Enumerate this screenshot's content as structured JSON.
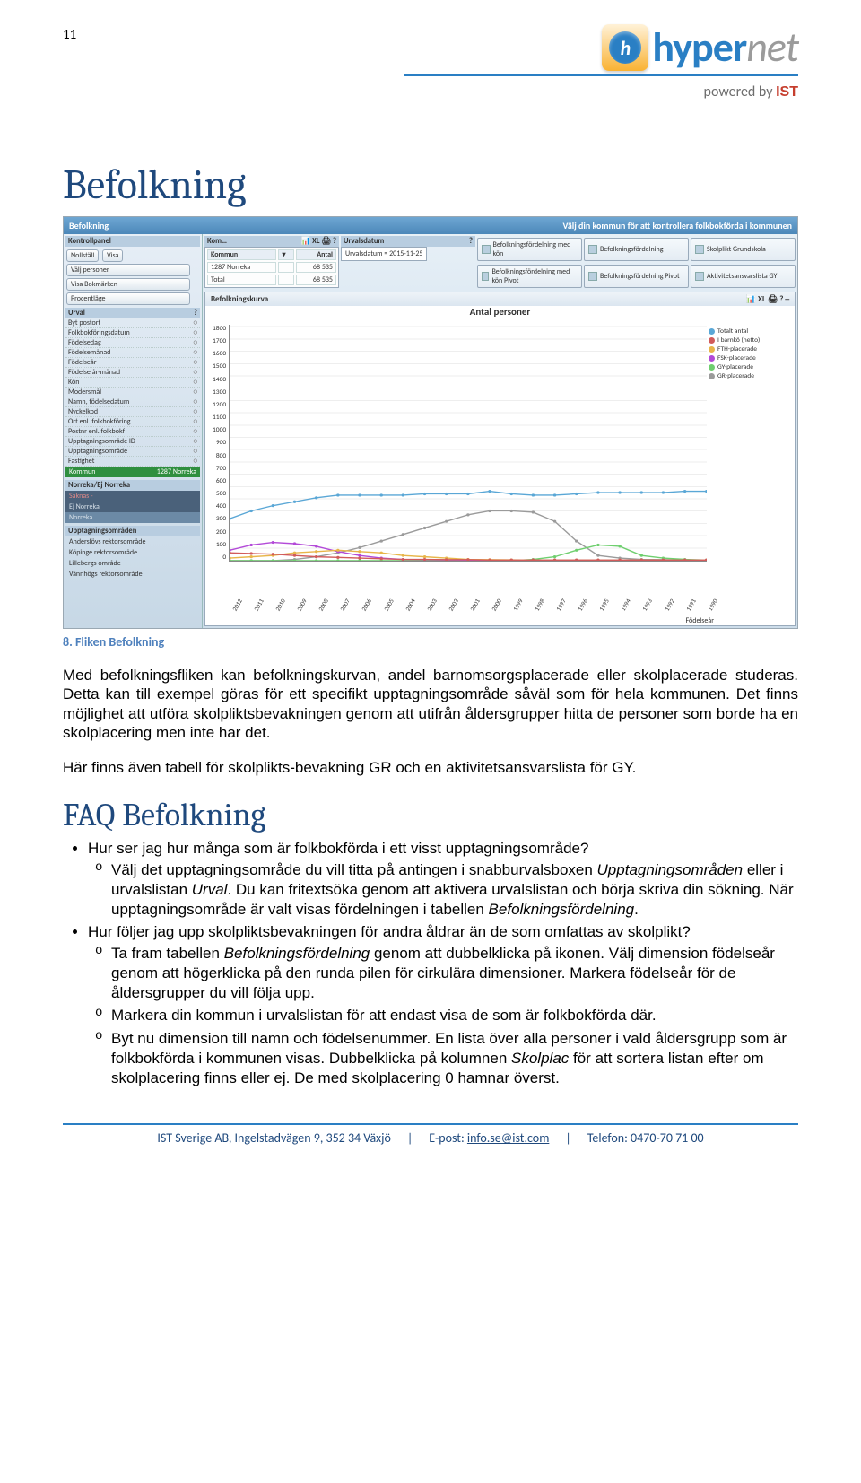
{
  "page_number": "11",
  "logo": {
    "brand1": "hyper",
    "brand2": "net",
    "icon_letter": "h",
    "powered": "powered by ",
    "ist": "IST"
  },
  "title": "Befolkning",
  "caption": "8. Fliken Befolkning",
  "subtitle": "FAQ Befolkning",
  "paragraphs": {
    "p1": "Med befolkningsfliken kan befolkningskurvan, andel barnomsorgsplacerade eller skolplacerade studeras. Detta kan till exempel göras för ett specifikt upptagningsområde såväl som för hela kommunen. Det finns möjlighet att utföra skolpliktsbevakningen genom att utifrån åldersgrupper hitta de personer som borde ha en skolplacering men inte har det.",
    "p2": "Här finns även tabell för skolplikts-bevakning GR och en aktivitetsansvarslista för GY."
  },
  "faq": [
    {
      "q": "Hur ser jag hur många som är folkbokförda i ett visst upptagningsområde?",
      "a": [
        "Välj det upptagningsområde du vill titta på antingen i snabburvalsboxen Upptagningsområden eller i urvalslistan Urval. Du kan fritextsöka genom att aktivera urvalslistan och börja skriva din sökning. När upptagningsområde är valt visas fördelningen i tabellen Befolkningsfördelning."
      ]
    },
    {
      "q": "Hur följer jag upp skolpliktsbevakningen för andra åldrar än de som omfattas av skolplikt?",
      "a": [
        "Ta fram tabellen Befolkningsfördelning genom att dubbelklicka på ikonen. Välj dimension födelseår genom att högerklicka på den runda pilen för cirkulära dimensioner. Markera födelseår för de åldersgrupper du vill följa upp.",
        "Markera din kommun i urvalslistan för att endast visa de som är folkbokförda där.",
        "Byt nu dimension till namn och födelsenummer. En lista över alla personer i vald åldersgrupp som är folkbokförda i kommunen visas. Dubbelklicka på kolumnen Skolplac för att sortera listan efter om skolplacering finns eller ej. De med skolplacering 0 hamnar överst."
      ]
    }
  ],
  "footer": {
    "addr": "IST Sverige AB, Ingelstadvägen 9, 352 34 Växjö",
    "email_label": "E-post: ",
    "email": "info.se@ist.com",
    "tel": "Telefon: 0470-70 71 00"
  },
  "screenshot": {
    "titlebar": {
      "left": "Befolkning",
      "right": "Välj din kommun för att kontrollera folkbokförda i kommunen"
    },
    "kontrollpanel": {
      "heading": "Kontrollpanel",
      "buttons": [
        "Nollställ",
        "Visa",
        "Välj personer",
        "Visa Bokmärken",
        "Procentläge"
      ]
    },
    "kom": {
      "heading": "Kom…",
      "icons": "📊 XL 🖨 ?",
      "columns": [
        "Kommun",
        "▾",
        "Antal"
      ],
      "rows": [
        [
          "1287 Norreka",
          "",
          "68 535"
        ],
        [
          "Total",
          "",
          "68 535"
        ]
      ]
    },
    "urvalsdatum": {
      "label": "Urvalsdatum",
      "value": "Urvalsdatum = 2015-11-25"
    },
    "tiles_row1": [
      "Befolkningsfördelning med kön",
      "Befolkningsfördelning",
      "Skolplikt Grundskola"
    ],
    "tiles_row2": [
      "Befolkningsfördelning med kön Pivot",
      "Befolkningsfördelning Pivot",
      "Aktivitetsansvarslista GY"
    ],
    "urval": {
      "heading": "Urval",
      "items": [
        "Byt postort",
        "Folkbokföringsdatum",
        "Födelsedag",
        "Födelsemånad",
        "Födelseår",
        "Födelse år-månad",
        "Kön",
        "Modersmål",
        "Namn, födelsedatum",
        "Nyckelkod",
        "Ort enl. folkbokföring",
        "Postnr enl. folkbokf",
        "Upptagningsområde ID",
        "Upptagningsområde",
        "Fastighet",
        "Kommun"
      ],
      "selected": {
        "label": "Kommun",
        "value": "1287 Norreka"
      }
    },
    "norreka": {
      "heading": "Norreka/Ej Norreka",
      "items": [
        "Saknas -",
        "Ej Norreka",
        "Norreka"
      ]
    },
    "upptag": {
      "heading": "Upptagningsområden",
      "items": [
        "Anderslövs rektorsområde",
        "Köpinge rektorsområde",
        "Lillebergs område",
        "Vännhögs rektorsområde"
      ]
    },
    "chart": {
      "heading": "Befolkningskurva",
      "heading_icons": "📊 XL 🖨 ? ⎯",
      "title": "Antal personer",
      "ylim": [
        0,
        1800
      ],
      "ytick_step": 100,
      "yticks": [
        "1800",
        "1700",
        "1600",
        "1500",
        "1400",
        "1300",
        "1200",
        "1100",
        "1000",
        "900",
        "800",
        "700",
        "600",
        "500",
        "400",
        "300",
        "200",
        "100",
        "0"
      ],
      "xticks": [
        "2012",
        "2011",
        "2010",
        "2009",
        "2008",
        "2007",
        "2006",
        "2005",
        "2004",
        "2003",
        "2002",
        "2001",
        "2000",
        "1999",
        "1998",
        "1997",
        "1996",
        "1995",
        "1994",
        "1993",
        "1992",
        "1991",
        "1990"
      ],
      "x_label": "Födelseår",
      "legend": [
        {
          "label": "Totalt antal",
          "color": "#5aa7d6"
        },
        {
          "label": "I barnkö (netto)",
          "color": "#d15b5b"
        },
        {
          "label": "FTH-placerade",
          "color": "#e8b64a"
        },
        {
          "label": "FSK-placerade",
          "color": "#b34ad8"
        },
        {
          "label": "GY-placerade",
          "color": "#6fcf6f"
        },
        {
          "label": "GR-placerade",
          "color": "#9b9b9b"
        }
      ],
      "series": {
        "total": {
          "color": "#5aa7d6",
          "vals": [
            320,
            380,
            420,
            450,
            480,
            500,
            500,
            500,
            500,
            510,
            510,
            510,
            530,
            510,
            500,
            500,
            510,
            520,
            520,
            520,
            520,
            530,
            530
          ]
        },
        "barnko": {
          "color": "#d15b5b",
          "vals": [
            60,
            55,
            50,
            40,
            30,
            25,
            20,
            15,
            10,
            10,
            8,
            8,
            5,
            5,
            5,
            5,
            5,
            5,
            5,
            5,
            5,
            5,
            5
          ]
        },
        "fth": {
          "color": "#e8b64a",
          "vals": [
            20,
            30,
            40,
            60,
            70,
            80,
            70,
            60,
            40,
            30,
            20,
            10,
            8,
            6,
            5,
            5,
            5,
            5,
            5,
            5,
            5,
            5,
            5
          ]
        },
        "fsk": {
          "color": "#b34ad8",
          "vals": [
            80,
            120,
            140,
            130,
            110,
            70,
            40,
            20,
            10,
            8,
            6,
            5,
            5,
            5,
            5,
            5,
            5,
            5,
            5,
            5,
            5,
            5,
            5
          ]
        },
        "gy": {
          "color": "#6fcf6f",
          "vals": [
            0,
            0,
            0,
            0,
            0,
            0,
            0,
            0,
            0,
            0,
            0,
            0,
            0,
            0,
            10,
            30,
            80,
            120,
            110,
            40,
            20,
            10,
            5
          ]
        },
        "gr": {
          "color": "#9b9b9b",
          "vals": [
            0,
            0,
            0,
            10,
            30,
            60,
            100,
            150,
            200,
            250,
            300,
            350,
            380,
            380,
            370,
            300,
            150,
            40,
            20,
            10,
            8,
            5,
            5
          ]
        }
      },
      "background_color": "#ffffff",
      "grid_color": "#eeeeee",
      "line_width": 1.4
    }
  }
}
